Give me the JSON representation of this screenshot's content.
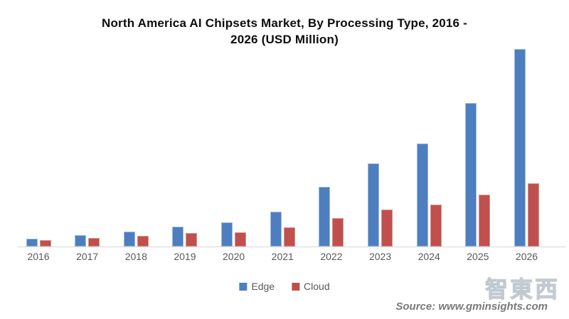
{
  "title_lines": [
    "North America AI Chipsets Market, By Processing Type, 2016 -",
    "2026 (USD Million)"
  ],
  "chart_data": {
    "type": "bar",
    "title": "North America AI Chipsets Market, By Processing Type, 2016 - 2026 (USD Million)",
    "xlabel": "",
    "ylabel": "",
    "categories": [
      "2016",
      "2017",
      "2018",
      "2019",
      "2020",
      "2021",
      "2022",
      "2023",
      "2024",
      "2025",
      "2026"
    ],
    "series": [
      {
        "name": "Edge",
        "color": "#4d7ebf",
        "values": [
          11,
          16,
          21,
          28,
          34,
          49,
          84,
          117,
          145,
          202,
          278
        ]
      },
      {
        "name": "Cloud",
        "color": "#c0504d",
        "values": [
          9,
          12,
          15,
          19,
          20,
          27,
          40,
          52,
          59,
          73,
          89
        ]
      }
    ],
    "value_note": "y-axis is unlabeled in the figure; values are estimated relative heights (pixels above baseline)",
    "ylim": [
      0,
      290
    ],
    "grid": false,
    "y_axis_visible": false,
    "legend_position": "bottom"
  },
  "legend": {
    "items": [
      {
        "label": "Edge",
        "color": "#4d7ebf"
      },
      {
        "label": "Cloud",
        "color": "#c0504d"
      }
    ]
  },
  "source": {
    "text": "Source: www.gminsights.com"
  },
  "watermark": {
    "text": "智東西"
  },
  "colors": {
    "edge_bar": "#4d7ebf",
    "cloud_bar": "#c0504d",
    "axis_line": "#d6d6d6",
    "tick_text": "#595959",
    "legend_text": "#595959",
    "source_text": "#77797c",
    "title_text": "#0d0d0d",
    "background": "#ffffff"
  }
}
